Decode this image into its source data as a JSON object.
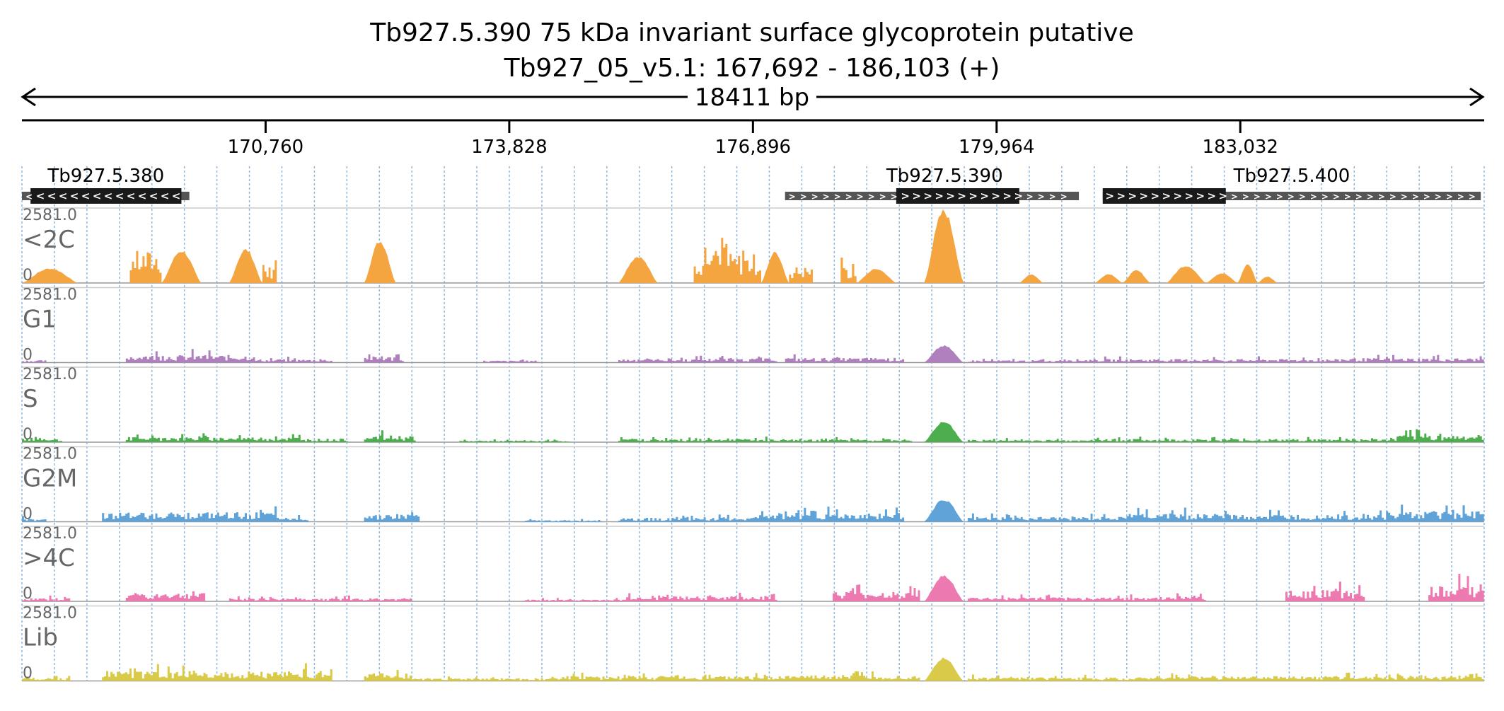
{
  "header": {
    "title": "Tb927.5.390  75 kDa invariant surface glycoprotein  putative",
    "locus": "Tb927_05_v5.1: 167,692 - 186,103 (+)",
    "span_label": "18411 bp"
  },
  "colors": {
    "ink": "#000000",
    "grid": "#5b9bd5",
    "track_label": "#666666",
    "gene_fill": "#1a1a1a",
    "gene_line": "#555555",
    "baseline": "#999999"
  },
  "chart_data": {
    "type": "area",
    "title": "Tb927.5.390  75 kDa invariant surface glycoprotein  putative",
    "chromosome": "Tb927_05_v5.1",
    "region": [
      167692,
      186103
    ],
    "strand": "+",
    "x_ticks": [
      170760,
      173828,
      176896,
      179964,
      183032
    ],
    "x_tick_labels": [
      "170,760",
      "173,828",
      "176,896",
      "179,964",
      "183,032"
    ],
    "genes": [
      {
        "name": "Tb927.5.380",
        "strand": "-",
        "cds": [
          167800,
          169700
        ],
        "utr": [
          167692,
          169800
        ]
      },
      {
        "name": "Tb927.5.390",
        "strand": "+",
        "cds": [
          178700,
          180250
        ],
        "utr": [
          177300,
          181000
        ]
      },
      {
        "name": "Tb927.5.400",
        "strand": "+",
        "cds": [
          181300,
          182850
        ],
        "utr": [
          181300,
          186060
        ]
      }
    ],
    "y_max_label": "2581.0",
    "y_min_label": "0",
    "ylim": [
      0,
      2581
    ],
    "tracks": [
      {
        "name": "<2C",
        "color": "#f5a540",
        "segments": [
          {
            "start": 167692,
            "end": 168400,
            "peak": 520,
            "shape": "bump"
          },
          {
            "start": 169050,
            "end": 169450,
            "peak": 2020,
            "shape": "bars"
          },
          {
            "start": 169450,
            "end": 169950,
            "peak": 1150,
            "shape": "bump"
          },
          {
            "start": 170300,
            "end": 170720,
            "peak": 1200,
            "shape": "bump"
          },
          {
            "start": 170720,
            "end": 170900,
            "peak": 1050,
            "shape": "bars"
          },
          {
            "start": 172000,
            "end": 172400,
            "peak": 1500,
            "shape": "bump"
          },
          {
            "start": 175200,
            "end": 175700,
            "peak": 950,
            "shape": "bump"
          },
          {
            "start": 176150,
            "end": 177000,
            "peak": 1850,
            "shape": "bars"
          },
          {
            "start": 177000,
            "end": 177350,
            "peak": 1100,
            "shape": "bump"
          },
          {
            "start": 177350,
            "end": 177650,
            "peak": 1050,
            "shape": "bars"
          },
          {
            "start": 178000,
            "end": 178200,
            "peak": 950,
            "shape": "bars"
          },
          {
            "start": 178200,
            "end": 178700,
            "peak": 500,
            "shape": "bump"
          },
          {
            "start": 179050,
            "end": 179550,
            "peak": 2581,
            "shape": "bump"
          },
          {
            "start": 180250,
            "end": 180550,
            "peak": 310,
            "shape": "bump"
          },
          {
            "start": 181200,
            "end": 181550,
            "peak": 320,
            "shape": "bump"
          },
          {
            "start": 181550,
            "end": 181900,
            "peak": 450,
            "shape": "bump"
          },
          {
            "start": 182100,
            "end": 182600,
            "peak": 620,
            "shape": "bump"
          },
          {
            "start": 182600,
            "end": 183000,
            "peak": 350,
            "shape": "bump"
          },
          {
            "start": 183000,
            "end": 183250,
            "peak": 680,
            "shape": "bump"
          },
          {
            "start": 183250,
            "end": 183500,
            "peak": 230,
            "shape": "bump"
          }
        ]
      },
      {
        "name": "G1",
        "color": "#b07fbd",
        "segments": [
          {
            "start": 167692,
            "end": 168000,
            "peak": 150,
            "shape": "bars"
          },
          {
            "start": 169000,
            "end": 170600,
            "peak": 480,
            "shape": "bars"
          },
          {
            "start": 170600,
            "end": 171600,
            "peak": 200,
            "shape": "bars"
          },
          {
            "start": 172000,
            "end": 172500,
            "peak": 380,
            "shape": "bars"
          },
          {
            "start": 173500,
            "end": 174200,
            "peak": 130,
            "shape": "bars"
          },
          {
            "start": 175200,
            "end": 176200,
            "peak": 230,
            "shape": "bars"
          },
          {
            "start": 176200,
            "end": 177200,
            "peak": 260,
            "shape": "bars"
          },
          {
            "start": 177300,
            "end": 178800,
            "peak": 300,
            "shape": "bars"
          },
          {
            "start": 179050,
            "end": 179550,
            "peak": 600,
            "shape": "bump"
          },
          {
            "start": 179600,
            "end": 180700,
            "peak": 150,
            "shape": "bars"
          },
          {
            "start": 180700,
            "end": 182500,
            "peak": 220,
            "shape": "bars"
          },
          {
            "start": 182500,
            "end": 184300,
            "peak": 220,
            "shape": "bars"
          },
          {
            "start": 184300,
            "end": 186100,
            "peak": 280,
            "shape": "bars"
          }
        ]
      },
      {
        "name": "S",
        "color": "#4cae4c",
        "segments": [
          {
            "start": 167692,
            "end": 168200,
            "peak": 200,
            "shape": "bars"
          },
          {
            "start": 169000,
            "end": 171200,
            "peak": 320,
            "shape": "bars"
          },
          {
            "start": 171200,
            "end": 171800,
            "peak": 220,
            "shape": "bars"
          },
          {
            "start": 172000,
            "end": 172650,
            "peak": 420,
            "shape": "bars"
          },
          {
            "start": 173200,
            "end": 174600,
            "peak": 100,
            "shape": "bars"
          },
          {
            "start": 175200,
            "end": 177400,
            "peak": 200,
            "shape": "bars"
          },
          {
            "start": 177400,
            "end": 178900,
            "peak": 180,
            "shape": "bars"
          },
          {
            "start": 179050,
            "end": 179550,
            "peak": 720,
            "shape": "bump"
          },
          {
            "start": 179600,
            "end": 181200,
            "peak": 150,
            "shape": "bars"
          },
          {
            "start": 181200,
            "end": 182800,
            "peak": 200,
            "shape": "bars"
          },
          {
            "start": 182800,
            "end": 185000,
            "peak": 200,
            "shape": "bars"
          },
          {
            "start": 185000,
            "end": 186100,
            "peak": 450,
            "shape": "bars"
          }
        ]
      },
      {
        "name": "G2M",
        "color": "#5fa3d8",
        "segments": [
          {
            "start": 167692,
            "end": 168000,
            "peak": 200,
            "shape": "bars"
          },
          {
            "start": 168700,
            "end": 170900,
            "peak": 600,
            "shape": "bars"
          },
          {
            "start": 170900,
            "end": 171300,
            "peak": 250,
            "shape": "bars"
          },
          {
            "start": 172000,
            "end": 172700,
            "peak": 500,
            "shape": "bars"
          },
          {
            "start": 174000,
            "end": 175000,
            "peak": 100,
            "shape": "bars"
          },
          {
            "start": 175200,
            "end": 177000,
            "peak": 250,
            "shape": "bars"
          },
          {
            "start": 177000,
            "end": 178800,
            "peak": 550,
            "shape": "bars"
          },
          {
            "start": 179050,
            "end": 179550,
            "peak": 800,
            "shape": "bump"
          },
          {
            "start": 179600,
            "end": 181600,
            "peak": 300,
            "shape": "bars"
          },
          {
            "start": 181600,
            "end": 182700,
            "peak": 520,
            "shape": "bars"
          },
          {
            "start": 182700,
            "end": 185000,
            "peak": 450,
            "shape": "bars"
          },
          {
            "start": 185000,
            "end": 186100,
            "peak": 700,
            "shape": "bars"
          }
        ]
      },
      {
        "name": ">4C",
        "color": "#ec7ab1",
        "segments": [
          {
            "start": 167692,
            "end": 168300,
            "peak": 200,
            "shape": "bars"
          },
          {
            "start": 169000,
            "end": 170000,
            "peak": 520,
            "shape": "bars"
          },
          {
            "start": 170300,
            "end": 172600,
            "peak": 200,
            "shape": "bars"
          },
          {
            "start": 174000,
            "end": 175300,
            "peak": 120,
            "shape": "bars"
          },
          {
            "start": 175300,
            "end": 177200,
            "peak": 330,
            "shape": "bars"
          },
          {
            "start": 177900,
            "end": 179000,
            "peak": 600,
            "shape": "bars"
          },
          {
            "start": 179050,
            "end": 179550,
            "peak": 920,
            "shape": "bump"
          },
          {
            "start": 179600,
            "end": 181300,
            "peak": 250,
            "shape": "bars"
          },
          {
            "start": 181300,
            "end": 182600,
            "peak": 280,
            "shape": "bars"
          },
          {
            "start": 183600,
            "end": 184600,
            "peak": 720,
            "shape": "bars"
          },
          {
            "start": 185400,
            "end": 186100,
            "peak": 950,
            "shape": "bars"
          }
        ]
      },
      {
        "name": "Lib",
        "color": "#d9cb49",
        "segments": [
          {
            "start": 167692,
            "end": 168300,
            "peak": 200,
            "shape": "bars"
          },
          {
            "start": 168700,
            "end": 171600,
            "peak": 620,
            "shape": "bars"
          },
          {
            "start": 172000,
            "end": 172600,
            "peak": 500,
            "shape": "bars"
          },
          {
            "start": 172600,
            "end": 174600,
            "peak": 180,
            "shape": "bars"
          },
          {
            "start": 174600,
            "end": 177300,
            "peak": 300,
            "shape": "bars"
          },
          {
            "start": 177300,
            "end": 179000,
            "peak": 350,
            "shape": "bars"
          },
          {
            "start": 179050,
            "end": 179550,
            "peak": 820,
            "shape": "bump"
          },
          {
            "start": 179600,
            "end": 182000,
            "peak": 220,
            "shape": "bars"
          },
          {
            "start": 182000,
            "end": 184200,
            "peak": 300,
            "shape": "bars"
          },
          {
            "start": 184200,
            "end": 186100,
            "peak": 320,
            "shape": "bars"
          }
        ]
      }
    ]
  }
}
